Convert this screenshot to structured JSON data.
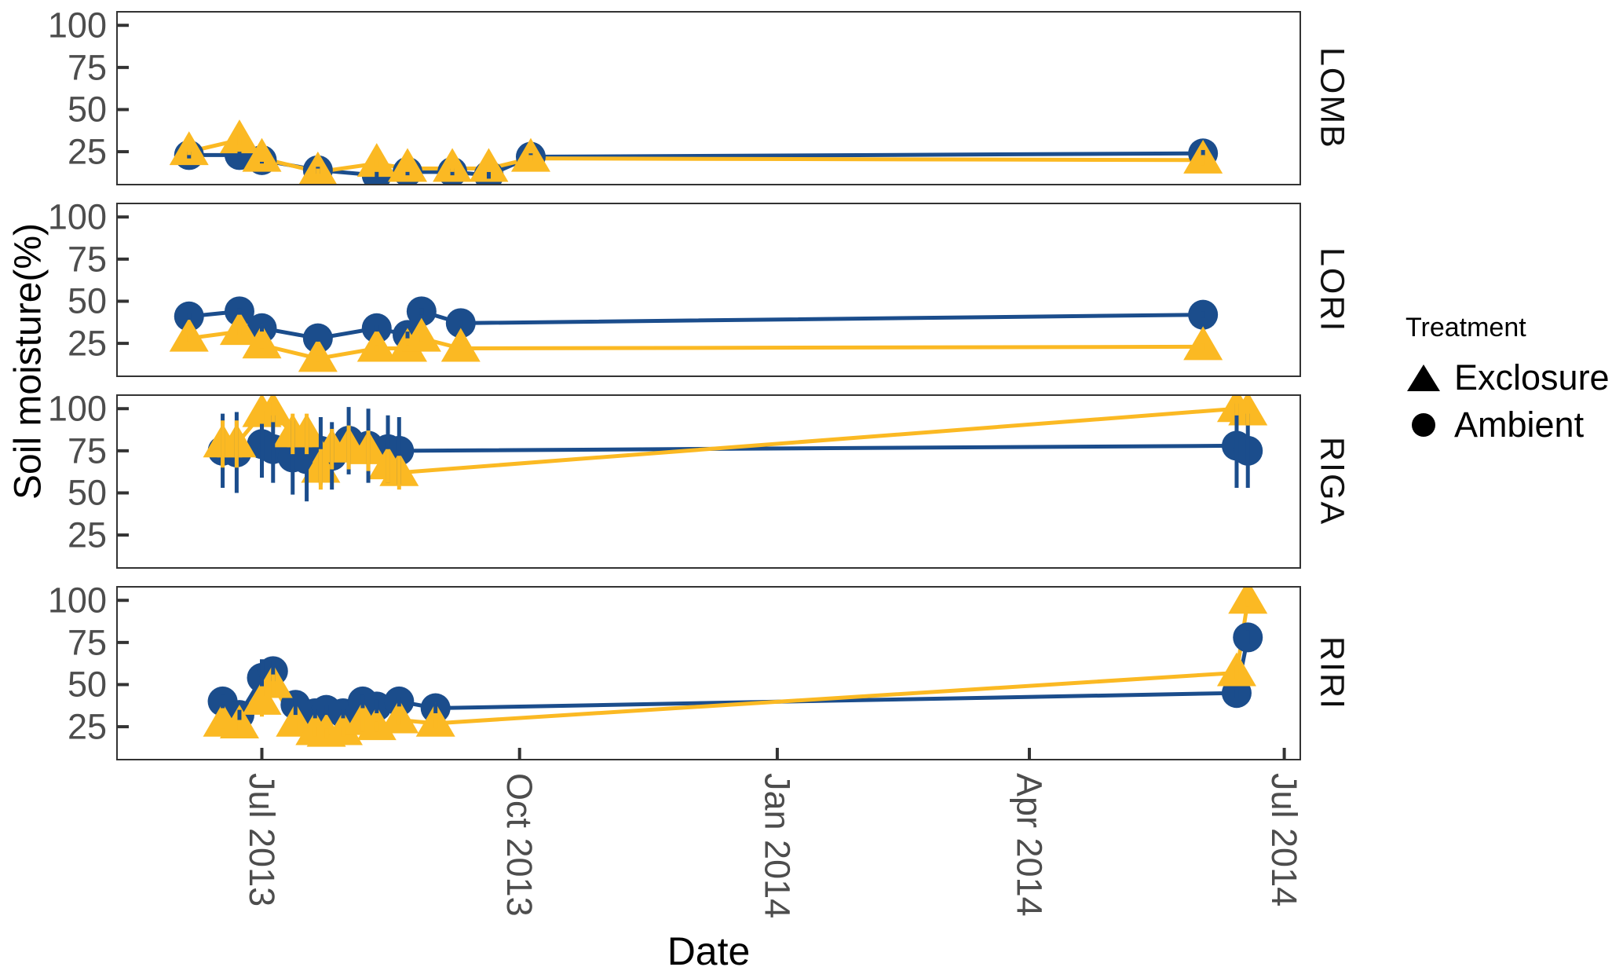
{
  "figure_text": {
    "y_axis_title": "Soil moisture(%)",
    "x_axis_title": "Date"
  },
  "legend": {
    "title": "Treatment",
    "items": [
      {
        "label": "Exclosure",
        "marker": "triangle"
      },
      {
        "label": "Ambient",
        "marker": "circle"
      }
    ]
  },
  "colors": {
    "ambient_blue": "#1B4D8C",
    "exclosure_yellow": "#FBB923",
    "axis_text_gray": "#4D4D4D",
    "panel_border": "#333333",
    "legend_black": "#000000"
  },
  "chart_data": {
    "type": "line",
    "title": "",
    "xlabel": "Date",
    "ylabel": "Soil moisture(%)",
    "ylim": [
      5,
      108.5
    ],
    "y_ticks": [
      100,
      75,
      50,
      25
    ],
    "x_domain": [
      "2013-05-10",
      "2014-07-07"
    ],
    "x_ticks": [
      {
        "label": "Jul 2013",
        "date": "2013-07-01"
      },
      {
        "label": "Oct 2013",
        "date": "2013-10-01"
      },
      {
        "label": "Jan 2014",
        "date": "2014-01-01"
      },
      {
        "label": "Apr 2014",
        "date": "2014-04-01"
      },
      {
        "label": "Jul 2014",
        "date": "2014-07-01"
      }
    ],
    "legend_position": "right",
    "grid": false,
    "panels": [
      {
        "site": "LOMB",
        "series": [
          {
            "name": "Ambient",
            "marker": "circle",
            "color": "#1B4D8C",
            "points": [
              {
                "d": "2013-06-05",
                "v": 23,
                "e": 2
              },
              {
                "d": "2013-06-23",
                "v": 23,
                "e": 2
              },
              {
                "d": "2013-07-01",
                "v": 20,
                "e": 2
              },
              {
                "d": "2013-07-21",
                "v": 14,
                "e": 2
              },
              {
                "d": "2013-08-11",
                "v": 11,
                "e": 2
              },
              {
                "d": "2013-08-22",
                "v": 13,
                "e": 2
              },
              {
                "d": "2013-09-07",
                "v": 13,
                "e": 2
              },
              {
                "d": "2013-09-20",
                "v": 11,
                "e": 2
              },
              {
                "d": "2013-10-05",
                "v": 22,
                "e": 2
              },
              {
                "d": "2014-06-02",
                "v": 24,
                "e": 2
              }
            ]
          },
          {
            "name": "Exclosure",
            "marker": "triangle",
            "color": "#FBB923",
            "points": [
              {
                "d": "2013-06-05",
                "v": 25,
                "e": 2
              },
              {
                "d": "2013-06-23",
                "v": 32,
                "e": 3
              },
              {
                "d": "2013-07-01",
                "v": 21,
                "e": 2
              },
              {
                "d": "2013-07-21",
                "v": 13,
                "e": 2
              },
              {
                "d": "2013-08-11",
                "v": 18,
                "e": 2
              },
              {
                "d": "2013-08-22",
                "v": 15,
                "e": 2
              },
              {
                "d": "2013-09-07",
                "v": 15,
                "e": 2
              },
              {
                "d": "2013-09-20",
                "v": 15,
                "e": 2
              },
              {
                "d": "2013-10-05",
                "v": 21,
                "e": 2
              },
              {
                "d": "2014-06-02",
                "v": 20,
                "e": 3
              }
            ]
          }
        ]
      },
      {
        "site": "LORI",
        "series": [
          {
            "name": "Ambient",
            "marker": "circle",
            "color": "#1B4D8C",
            "points": [
              {
                "d": "2013-06-05",
                "v": 41,
                "e": 2
              },
              {
                "d": "2013-06-23",
                "v": 44,
                "e": 2
              },
              {
                "d": "2013-07-01",
                "v": 34,
                "e": 2
              },
              {
                "d": "2013-07-21",
                "v": 28,
                "e": 2
              },
              {
                "d": "2013-08-11",
                "v": 34,
                "e": 2
              },
              {
                "d": "2013-08-22",
                "v": 30,
                "e": 2
              },
              {
                "d": "2013-08-27",
                "v": 44,
                "e": 2
              },
              {
                "d": "2013-09-10",
                "v": 37,
                "e": 2
              },
              {
                "d": "2014-06-02",
                "v": 42,
                "e": 2
              }
            ]
          },
          {
            "name": "Exclosure",
            "marker": "triangle",
            "color": "#FBB923",
            "points": [
              {
                "d": "2013-06-05",
                "v": 28,
                "e": 2
              },
              {
                "d": "2013-06-23",
                "v": 32,
                "e": 2
              },
              {
                "d": "2013-07-01",
                "v": 24,
                "e": 2
              },
              {
                "d": "2013-07-21",
                "v": 16,
                "e": 2
              },
              {
                "d": "2013-08-11",
                "v": 22,
                "e": 2
              },
              {
                "d": "2013-08-22",
                "v": 22,
                "e": 2
              },
              {
                "d": "2013-08-27",
                "v": 28,
                "e": 2
              },
              {
                "d": "2013-09-10",
                "v": 22,
                "e": 2
              },
              {
                "d": "2014-06-02",
                "v": 23,
                "e": 2
              }
            ]
          }
        ]
      },
      {
        "site": "RIGA",
        "series": [
          {
            "name": "Ambient",
            "marker": "circle",
            "color": "#1B4D8C",
            "points": [
              {
                "d": "2013-06-17",
                "v": 75,
                "e": 22
              },
              {
                "d": "2013-06-22",
                "v": 74,
                "e": 24
              },
              {
                "d": "2013-07-01",
                "v": 79,
                "e": 20
              },
              {
                "d": "2013-07-05",
                "v": 76,
                "e": 20
              },
              {
                "d": "2013-07-12",
                "v": 71,
                "e": 22
              },
              {
                "d": "2013-07-17",
                "v": 70,
                "e": 25
              },
              {
                "d": "2013-07-22",
                "v": 75,
                "e": 20
              },
              {
                "d": "2013-07-26",
                "v": 72,
                "e": 20
              },
              {
                "d": "2013-08-01",
                "v": 81,
                "e": 20
              },
              {
                "d": "2013-08-08",
                "v": 78,
                "e": 22
              },
              {
                "d": "2013-08-15",
                "v": 76,
                "e": 20
              },
              {
                "d": "2013-08-19",
                "v": 75,
                "e": 20
              },
              {
                "d": "2014-06-14",
                "v": 78,
                "e": 25
              },
              {
                "d": "2014-06-18",
                "v": 75,
                "e": 22
              }
            ]
          },
          {
            "name": "Exclosure",
            "marker": "triangle",
            "color": "#FBB923",
            "points": [
              {
                "d": "2013-06-17",
                "v": 79,
                "e": 14
              },
              {
                "d": "2013-06-22",
                "v": 79,
                "e": 14
              },
              {
                "d": "2013-07-01",
                "v": 97,
                "e": 6
              },
              {
                "d": "2013-07-05",
                "v": 98,
                "e": 6
              },
              {
                "d": "2013-07-12",
                "v": 85,
                "e": 12
              },
              {
                "d": "2013-07-17",
                "v": 85,
                "e": 12
              },
              {
                "d": "2013-07-22",
                "v": 64,
                "e": 12
              },
              {
                "d": "2013-07-26",
                "v": 76,
                "e": 12
              },
              {
                "d": "2013-08-01",
                "v": 77,
                "e": 13
              },
              {
                "d": "2013-08-08",
                "v": 75,
                "e": 12
              },
              {
                "d": "2013-08-15",
                "v": 66,
                "e": 10
              },
              {
                "d": "2013-08-19",
                "v": 62,
                "e": 10
              },
              {
                "d": "2014-06-14",
                "v": 100,
                "e": 4
              },
              {
                "d": "2014-06-18",
                "v": 98,
                "e": 8
              }
            ]
          }
        ]
      },
      {
        "site": "RIRI",
        "series": [
          {
            "name": "Ambient",
            "marker": "circle",
            "color": "#1B4D8C",
            "points": [
              {
                "d": "2013-06-17",
                "v": 40,
                "e": 4
              },
              {
                "d": "2013-06-23",
                "v": 32,
                "e": 3
              },
              {
                "d": "2013-07-01",
                "v": 54,
                "e": 11
              },
              {
                "d": "2013-07-05",
                "v": 58,
                "e": 6
              },
              {
                "d": "2013-07-13",
                "v": 38,
                "e": 6
              },
              {
                "d": "2013-07-20",
                "v": 33,
                "e": 3
              },
              {
                "d": "2013-07-24",
                "v": 35,
                "e": 3
              },
              {
                "d": "2013-07-30",
                "v": 33,
                "e": 3
              },
              {
                "d": "2013-08-06",
                "v": 40,
                "e": 4
              },
              {
                "d": "2013-08-11",
                "v": 37,
                "e": 4
              },
              {
                "d": "2013-08-19",
                "v": 40,
                "e": 3
              },
              {
                "d": "2013-09-01",
                "v": 36,
                "e": 3
              },
              {
                "d": "2014-06-14",
                "v": 45,
                "e": 3
              },
              {
                "d": "2014-06-18",
                "v": 78,
                "e": 4
              }
            ]
          },
          {
            "name": "Exclosure",
            "marker": "triangle",
            "color": "#FBB923",
            "points": [
              {
                "d": "2013-06-17",
                "v": 27,
                "e": 3
              },
              {
                "d": "2013-06-23",
                "v": 26,
                "e": 3
              },
              {
                "d": "2013-07-01",
                "v": 40,
                "e": 9
              },
              {
                "d": "2013-07-05",
                "v": 50,
                "e": 6
              },
              {
                "d": "2013-07-13",
                "v": 27,
                "e": 4
              },
              {
                "d": "2013-07-20",
                "v": 22,
                "e": 3
              },
              {
                "d": "2013-07-24",
                "v": 21,
                "e": 3
              },
              {
                "d": "2013-07-30",
                "v": 22,
                "e": 3
              },
              {
                "d": "2013-08-06",
                "v": 28,
                "e": 6
              },
              {
                "d": "2013-08-11",
                "v": 25,
                "e": 3
              },
              {
                "d": "2013-08-19",
                "v": 29,
                "e": 3
              },
              {
                "d": "2013-09-01",
                "v": 27,
                "e": 3
              },
              {
                "d": "2014-06-14",
                "v": 57,
                "e": 4
              },
              {
                "d": "2014-06-18",
                "v": 100,
                "e": 4
              }
            ]
          }
        ]
      }
    ]
  }
}
